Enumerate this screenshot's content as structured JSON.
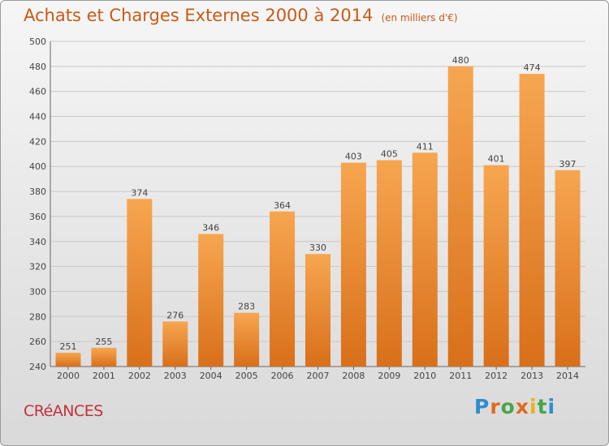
{
  "header": {
    "title": "Achats et Charges Externes 2000 à 2014",
    "subtitle": "(en milliers d'€)"
  },
  "footer": {
    "commune": "CRéANCES",
    "logo": "Proxiti"
  },
  "colors": {
    "bar_light": "#f7a650",
    "bar_dark": "#d96f1a",
    "title": "#c95a17",
    "commune": "#c4303a"
  },
  "chart_data": {
    "type": "bar",
    "categories": [
      "2000",
      "2001",
      "2002",
      "2003",
      "2004",
      "2005",
      "2006",
      "2007",
      "2008",
      "2009",
      "2010",
      "2011",
      "2012",
      "2013",
      "2014"
    ],
    "values": [
      251,
      255,
      374,
      276,
      346,
      283,
      364,
      330,
      403,
      405,
      411,
      480,
      401,
      474,
      397
    ],
    "title": "Achats et Charges Externes 2000 à 2014",
    "ylim": [
      240,
      500
    ],
    "yticks": [
      240,
      260,
      280,
      300,
      320,
      340,
      360,
      380,
      400,
      420,
      440,
      460,
      480,
      500
    ],
    "grid": true,
    "data_labels": true
  }
}
